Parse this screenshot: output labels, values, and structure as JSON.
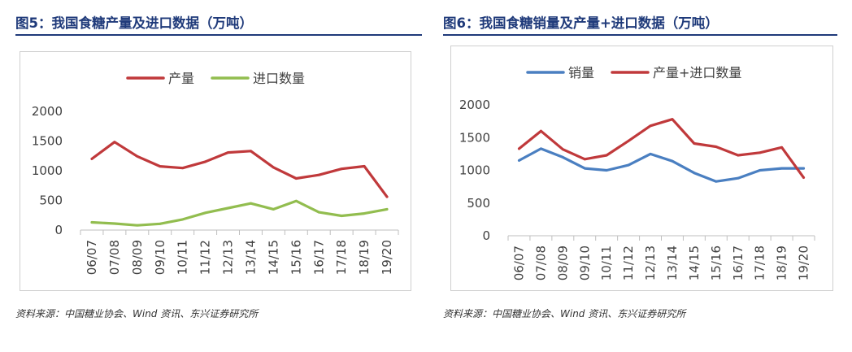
{
  "charts": [
    {
      "title": "图5：我国食糖产量及进口数据（万吨）",
      "source": "资料来源：中国糖业协会、Wind 资讯、东兴证券研究所"
    },
    {
      "title": "图6：我国食糖销量及产量+进口数据（万吨）",
      "source": "资料来源：中国糖业协会、Wind 资讯、东兴证券研究所"
    }
  ],
  "chart_data": [
    {
      "type": "line",
      "title": "图5：我国食糖产量及进口数据（万吨）",
      "categories": [
        "06/07",
        "07/08",
        "08/09",
        "09/10",
        "10/11",
        "11/12",
        "12/13",
        "13/14",
        "14/15",
        "15/16",
        "16/17",
        "17/18",
        "18/19",
        "19/20"
      ],
      "series": [
        {
          "name": "产量",
          "color": "#c0393b",
          "values": [
            1200,
            1484,
            1243,
            1074,
            1045,
            1152,
            1307,
            1332,
            1056,
            870,
            929,
            1031,
            1076,
            560
          ]
        },
        {
          "name": "进口数量",
          "color": "#92bd4f",
          "values": [
            130,
            110,
            80,
            105,
            180,
            290,
            370,
            450,
            350,
            490,
            300,
            240,
            280,
            350
          ]
        }
      ],
      "ylim": [
        0,
        2000
      ],
      "yticks": [
        0,
        500,
        1000,
        1500,
        2000
      ],
      "legend": "top",
      "grid": false
    },
    {
      "type": "line",
      "title": "图6：我国食糖销量及产量+进口数据（万吨）",
      "categories": [
        "06/07",
        "07/08",
        "08/09",
        "09/10",
        "10/11",
        "11/12",
        "12/13",
        "13/14",
        "14/15",
        "15/16",
        "16/17",
        "17/18",
        "18/19",
        "19/20"
      ],
      "series": [
        {
          "name": "销量",
          "color": "#4a7fc1",
          "values": [
            1150,
            1330,
            1200,
            1030,
            1000,
            1080,
            1250,
            1140,
            960,
            830,
            880,
            1000,
            1030,
            1030
          ]
        },
        {
          "name": "产量+进口数量",
          "color": "#c0393b",
          "values": [
            1330,
            1600,
            1320,
            1170,
            1230,
            1450,
            1680,
            1780,
            1410,
            1360,
            1230,
            1270,
            1350,
            890
          ]
        }
      ],
      "ylim": [
        0,
        2000
      ],
      "yticks": [
        0,
        500,
        1000,
        1500,
        2000
      ],
      "legend": "top",
      "grid": false
    }
  ]
}
